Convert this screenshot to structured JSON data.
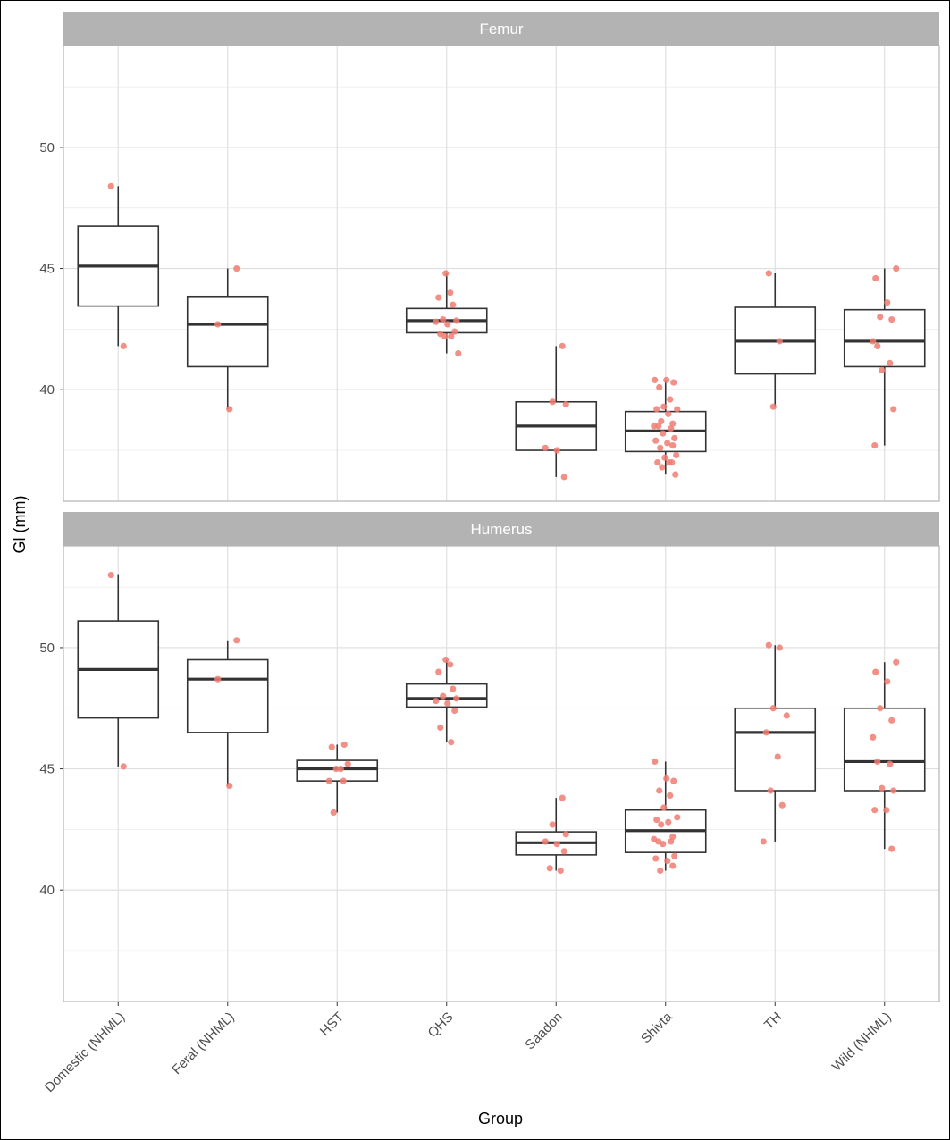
{
  "chart_data": {
    "type": "boxplot",
    "xlabel": "Group",
    "ylabel": "Gl (mm)",
    "categories": [
      "Domestic (NHML)",
      "Feral (NHML)",
      "HST",
      "QHS",
      "Saadon",
      "Shivta",
      "TH",
      "Wild (NHML)"
    ],
    "y_ticks": [
      40,
      45,
      50
    ],
    "grid": true,
    "point_color": "#f07c72",
    "panels": [
      {
        "title": "Femur",
        "ylim": [
          35.4,
          54.2
        ],
        "boxes": [
          {
            "group": "Domestic (NHML)",
            "q1": 43.45,
            "median": 45.1,
            "q3": 46.75,
            "lower": 41.8,
            "upper": 48.4
          },
          {
            "group": "Feral (NHML)",
            "q1": 40.95,
            "median": 42.7,
            "q3": 43.85,
            "lower": 39.2,
            "upper": 45.0
          },
          {
            "group": "QHS",
            "q1": 42.35,
            "median": 42.85,
            "q3": 43.35,
            "lower": 41.5,
            "upper": 44.8
          },
          {
            "group": "Saadon",
            "q1": 37.5,
            "median": 38.5,
            "q3": 39.5,
            "lower": 36.4,
            "upper": 41.8
          },
          {
            "group": "Shivta",
            "q1": 37.45,
            "median": 38.3,
            "q3": 39.1,
            "lower": 36.5,
            "upper": 40.4
          },
          {
            "group": "TH",
            "q1": 40.65,
            "median": 42.0,
            "q3": 43.4,
            "lower": 39.3,
            "upper": 44.8
          },
          {
            "group": "Wild (NHML)",
            "q1": 40.95,
            "median": 42.0,
            "q3": 43.3,
            "lower": 37.7,
            "upper": 45.0
          }
        ],
        "points": [
          {
            "group": "Domestic (NHML)",
            "values": [
              48.4,
              41.8
            ]
          },
          {
            "group": "Feral (NHML)",
            "values": [
              45.0,
              42.7,
              39.2
            ]
          },
          {
            "group": "QHS",
            "values": [
              44.8,
              44.0,
              43.8,
              43.5,
              42.9,
              42.85,
              42.8,
              42.7,
              42.4,
              42.3,
              42.2,
              42.2,
              41.5
            ]
          },
          {
            "group": "Saadon",
            "values": [
              41.8,
              39.5,
              39.4,
              37.6,
              37.5,
              36.4
            ]
          },
          {
            "group": "Shivta",
            "values": [
              40.4,
              40.4,
              40.3,
              40.1,
              39.6,
              39.3,
              39.2,
              39.2,
              39.0,
              38.7,
              38.6,
              38.5,
              38.5,
              38.4,
              38.2,
              38.0,
              37.9,
              37.8,
              37.7,
              37.6,
              37.3,
              37.2,
              37.0,
              37.0,
              37.0,
              36.8,
              36.5
            ]
          },
          {
            "group": "TH",
            "values": [
              44.8,
              42.0,
              39.3
            ]
          },
          {
            "group": "Wild (NHML)",
            "values": [
              45.0,
              44.6,
              43.6,
              43.0,
              42.9,
              42.0,
              41.8,
              41.1,
              40.8,
              39.2,
              37.7
            ]
          }
        ]
      },
      {
        "title": "Humerus",
        "ylim": [
          35.4,
          54.2
        ],
        "boxes": [
          {
            "group": "Domestic (NHML)",
            "q1": 47.1,
            "median": 49.1,
            "q3": 51.1,
            "lower": 45.1,
            "upper": 53.0
          },
          {
            "group": "Feral (NHML)",
            "q1": 46.5,
            "median": 48.7,
            "q3": 49.5,
            "lower": 44.3,
            "upper": 50.3
          },
          {
            "group": "HST",
            "q1": 44.5,
            "median": 45.0,
            "q3": 45.35,
            "lower": 43.2,
            "upper": 46.0
          },
          {
            "group": "QHS",
            "q1": 47.55,
            "median": 47.9,
            "q3": 48.5,
            "lower": 46.1,
            "upper": 49.5
          },
          {
            "group": "Saadon",
            "q1": 41.45,
            "median": 41.95,
            "q3": 42.4,
            "lower": 40.8,
            "upper": 43.8
          },
          {
            "group": "Shivta",
            "q1": 41.55,
            "median": 42.45,
            "q3": 43.3,
            "lower": 40.8,
            "upper": 45.3
          },
          {
            "group": "TH",
            "q1": 44.1,
            "median": 46.5,
            "q3": 47.5,
            "lower": 42.0,
            "upper": 50.1
          },
          {
            "group": "Wild (NHML)",
            "q1": 44.1,
            "median": 45.3,
            "q3": 47.5,
            "lower": 41.7,
            "upper": 49.4
          }
        ],
        "points": [
          {
            "group": "Domestic (NHML)",
            "values": [
              53.0,
              45.1
            ]
          },
          {
            "group": "Feral (NHML)",
            "values": [
              50.3,
              48.7,
              44.3
            ]
          },
          {
            "group": "HST",
            "values": [
              46.0,
              45.9,
              45.2,
              45.0,
              45.0,
              44.5,
              44.5,
              43.2
            ]
          },
          {
            "group": "QHS",
            "values": [
              49.5,
              49.3,
              49.0,
              48.3,
              48.0,
              47.9,
              47.8,
              47.7,
              47.4,
              46.7,
              46.1
            ]
          },
          {
            "group": "Saadon",
            "values": [
              43.8,
              42.7,
              42.3,
              42.0,
              41.9,
              41.6,
              40.9,
              40.8
            ]
          },
          {
            "group": "Shivta",
            "values": [
              45.3,
              44.6,
              44.5,
              44.1,
              43.9,
              43.4,
              43.0,
              42.9,
              42.8,
              42.7,
              42.2,
              42.1,
              42.0,
              42.0,
              41.9,
              41.4,
              41.3,
              41.2,
              41.0,
              40.8
            ]
          },
          {
            "group": "TH",
            "values": [
              50.1,
              50.0,
              47.5,
              47.2,
              46.5,
              45.5,
              44.1,
              43.5,
              42.0
            ]
          },
          {
            "group": "Wild (NHML)",
            "values": [
              49.4,
              49.0,
              48.6,
              47.5,
              47.0,
              46.3,
              45.3,
              45.2,
              44.2,
              44.1,
              43.3,
              43.3,
              41.7
            ]
          }
        ]
      }
    ]
  }
}
